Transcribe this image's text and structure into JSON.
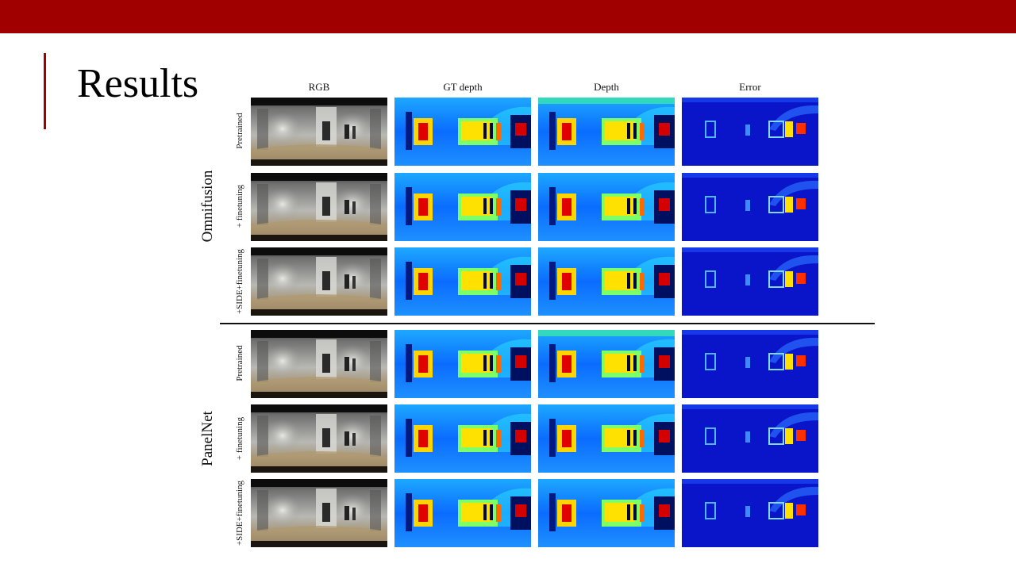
{
  "slide": {
    "title": "Results",
    "colors": {
      "banner": "#a00000",
      "accent": "#a00000"
    }
  },
  "figure": {
    "columns": [
      "RGB",
      "GT depth",
      "Depth",
      "Error"
    ],
    "groups": [
      {
        "name": "Omnifusion",
        "rows": [
          "Pretrained",
          "+ finetuning",
          "+SIDE+finetuning"
        ]
      },
      {
        "name": "PanelNet",
        "rows": [
          "Pretrained",
          "+ finetuning",
          "+SIDE+finetuning"
        ]
      }
    ],
    "image_kinds": [
      "rgb-panorama",
      "gt-depth-map",
      "predicted-depth-map",
      "error-map"
    ]
  }
}
